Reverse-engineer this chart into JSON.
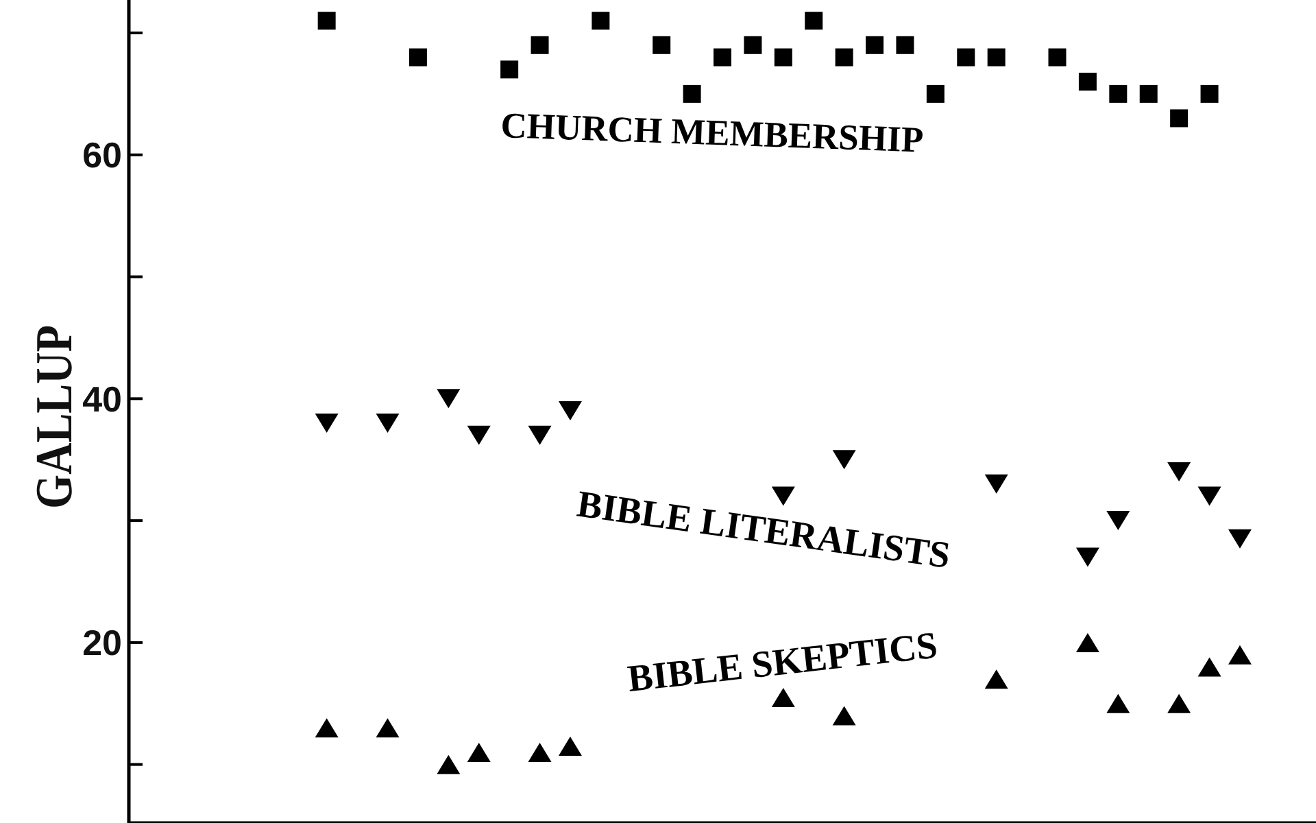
{
  "chart_data": {
    "type": "scatter",
    "ylabel": "GALLUP",
    "categories": [
      null,
      null,
      null,
      null,
      null,
      null,
      null,
      null,
      null,
      null,
      null,
      null,
      null,
      null,
      null,
      null,
      null,
      null,
      null,
      null,
      null,
      null,
      null,
      null,
      null,
      null,
      null,
      null,
      null,
      null,
      null,
      null,
      null,
      null,
      null,
      null,
      null,
      null,
      null
    ],
    "series": [
      {
        "name": "CHURCH MEMBERSHIP",
        "color": "#000000",
        "marker": "square",
        "values": [
          null,
          null,
          null,
          null,
          null,
          null,
          71,
          null,
          null,
          68,
          null,
          null,
          67,
          69,
          null,
          71,
          null,
          69,
          65,
          68,
          69,
          68,
          71,
          68,
          69,
          69,
          65,
          68,
          68,
          null,
          68,
          66,
          65,
          65,
          63,
          65,
          null,
          null,
          null
        ]
      },
      {
        "name": "BIBLE LITERALISTS",
        "color": "#000000",
        "marker": "triangle-down",
        "values": [
          null,
          null,
          null,
          null,
          null,
          null,
          38,
          null,
          38,
          null,
          40,
          37,
          null,
          37,
          39,
          null,
          null,
          null,
          null,
          null,
          null,
          32,
          null,
          35,
          null,
          null,
          null,
          null,
          33,
          null,
          null,
          27,
          30,
          null,
          34,
          32,
          28.5,
          null,
          null
        ]
      },
      {
        "name": "BIBLE SKEPTICS",
        "color": "#000000",
        "marker": "triangle",
        "values": [
          null,
          null,
          null,
          null,
          null,
          null,
          13,
          null,
          13,
          null,
          10,
          11,
          null,
          11,
          11.5,
          null,
          null,
          null,
          null,
          null,
          null,
          15.5,
          null,
          14,
          null,
          null,
          null,
          null,
          17,
          null,
          null,
          20,
          15,
          null,
          15,
          18,
          19,
          null,
          null
        ]
      }
    ],
    "ylim": [
      5.2,
      72.7
    ],
    "yticks": [
      {
        "value": 10,
        "label": null
      },
      20,
      {
        "value": 30,
        "label": null
      },
      40,
      {
        "value": 50,
        "label": null
      },
      60,
      {
        "value": 70,
        "label": null
      }
    ],
    "tick_labels": "y"
  }
}
